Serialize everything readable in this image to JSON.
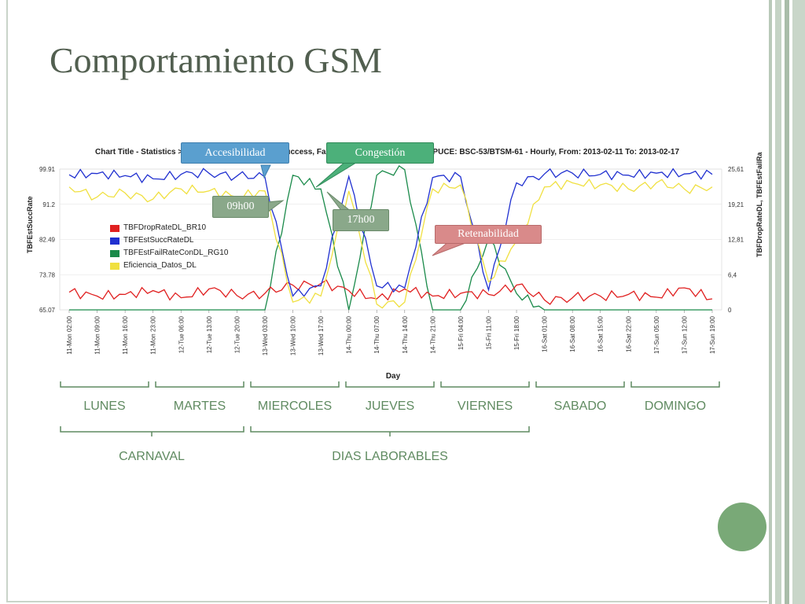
{
  "slide": {
    "title": "Comportamiento GSM"
  },
  "chart": {
    "title": "Chart Title - Statistics > NSN > ... Statistics > TBF Success, Fail y Drop > ...2G 61_UCE669_PUCE: BSC-53/BTSM-61 - Hourly, From: 2013-02-11 To: 2013-02-17",
    "ylabel_left": "TBFEstSuccRate",
    "ylabel_right": "TBFDropRateDL, TBFEstFailRa",
    "xlabel": "Day",
    "left_ticks": [
      "99.91",
      "91.2",
      "82.49",
      "73.78",
      "65.07"
    ],
    "right_ticks": [
      "25,61",
      "19,21",
      "12,81",
      "6,4",
      "0"
    ],
    "x_ticks": [
      "11-Mon 02:00",
      "11-Mon 09:00",
      "11-Mon 16:00",
      "11-Mon 23:00",
      "12-Tue 06:00",
      "12-Tue 13:00",
      "12-Tue 20:00",
      "13-Wed 03:00",
      "13-Wed 10:00",
      "13-Wed 17:00",
      "14-Thu 00:00",
      "14-Thu 07:00",
      "14-Thu 14:00",
      "14-Thu 21:00",
      "15-Fri 04:00",
      "15-Fri 11:00",
      "15-Fri 18:00",
      "16-Sat 01:00",
      "16-Sat 08:00",
      "16-Sat 15:00",
      "16-Sat 22:00",
      "17-Sun 05:00",
      "17-Sun 12:00",
      "17-Sun 19:00"
    ],
    "legend": [
      {
        "label": "TBFDropRateDL_BR10",
        "color": "#e02020"
      },
      {
        "label": "TBFEstSuccRateDL",
        "color": "#2030d0"
      },
      {
        "label": "TBFEstFailRateConDL_RG10",
        "color": "#1a8a4a"
      },
      {
        "label": "Eficiencia_Datos_DL",
        "color": "#f0e040"
      }
    ]
  },
  "chart_data": {
    "type": "line",
    "title": "Chart Title - Statistics > NSN > ... Statistics > TBF Success, Fail y Drop > ...2G 61_UCE669_PUCE: BSC-53/BTSM-61 - Hourly, From: 2013-02-11 To: 2013-02-17",
    "xlabel": "Day",
    "ylabel": "TBFEstSuccRate",
    "y2label": "TBFDropRateDL, TBFEstFailRa",
    "ylim": [
      65.07,
      99.91
    ],
    "y2lim": [
      0,
      25.61
    ],
    "x": [
      "11-Mon 02:00",
      "11-Mon 09:00",
      "11-Mon 16:00",
      "11-Mon 23:00",
      "12-Tue 06:00",
      "12-Tue 13:00",
      "12-Tue 20:00",
      "13-Wed 03:00",
      "13-Wed 10:00",
      "13-Wed 17:00",
      "14-Thu 00:00",
      "14-Thu 07:00",
      "14-Thu 14:00",
      "14-Thu 21:00",
      "15-Fri 04:00",
      "15-Fri 11:00",
      "15-Fri 18:00",
      "16-Sat 01:00",
      "16-Sat 08:00",
      "16-Sat 15:00",
      "16-Sat 22:00",
      "17-Sun 05:00",
      "17-Sun 12:00",
      "17-Sun 19:00"
    ],
    "series": [
      {
        "name": "TBFEstSuccRateDL",
        "axis": "left",
        "color": "#2030d0",
        "values": [
          98.5,
          98.8,
          98.3,
          97.5,
          98.6,
          98.9,
          98.2,
          97.9,
          68.5,
          71.0,
          98.1,
          71.0,
          70.5,
          97.8,
          98.0,
          70.0,
          96.5,
          98.7,
          98.9,
          98.6,
          98.4,
          98.9,
          98.7,
          98.6
        ]
      },
      {
        "name": "Eficiencia_Datos_DL",
        "axis": "left",
        "color": "#f0e040",
        "values": [
          95.5,
          93.0,
          94.0,
          92.5,
          95.0,
          94.5,
          93.0,
          94.5,
          67.0,
          68.5,
          94.5,
          66.5,
          67.0,
          95.0,
          96.0,
          72.0,
          82.0,
          95.5,
          96.5,
          96.0,
          95.0,
          96.5,
          95.0,
          95.5
        ]
      },
      {
        "name": "TBFDropRateDL_BR10",
        "axis": "right",
        "color": "#e02020",
        "values": [
          3.2,
          2.5,
          2.8,
          3.5,
          2.2,
          3.8,
          2.6,
          3.0,
          4.5,
          4.8,
          3.5,
          2.0,
          3.8,
          2.5,
          3.0,
          2.8,
          4.5,
          1.8,
          2.2,
          2.5,
          2.8,
          2.3,
          4.0,
          2.0
        ]
      },
      {
        "name": "TBFEstFailRateConDL_RG10",
        "axis": "right",
        "color": "#1a8a4a",
        "values": [
          0,
          0,
          0,
          0,
          0,
          0,
          0,
          0,
          24.5,
          22.0,
          0,
          24.5,
          25.5,
          0,
          0,
          13.0,
          3.0,
          0,
          0,
          0,
          0,
          0,
          0,
          0
        ]
      }
    ]
  },
  "callouts": {
    "accesibilidad": "Accesibilidad",
    "congestion": "Congestión",
    "t0900": "09h00",
    "t1700": "17h00",
    "retenabilidad": "Retenabilidad"
  },
  "groups": {
    "lunes": "LUNES",
    "martes": "MARTES",
    "miercoles": "MIERCOLES",
    "jueves": "JUEVES",
    "viernes": "VIERNES",
    "sabado": "SABADO",
    "domingo": "DOMINGO",
    "carnaval": "CARNAVAL",
    "dias_laborables": "DIAS LABORABLES"
  },
  "colors": {
    "accent_green": "#5f8a60",
    "callout_blue": "#5a9fcf",
    "callout_green": "#4cb07a",
    "callout_gray_green": "#8aa88a",
    "callout_red": "#d98a8a"
  }
}
